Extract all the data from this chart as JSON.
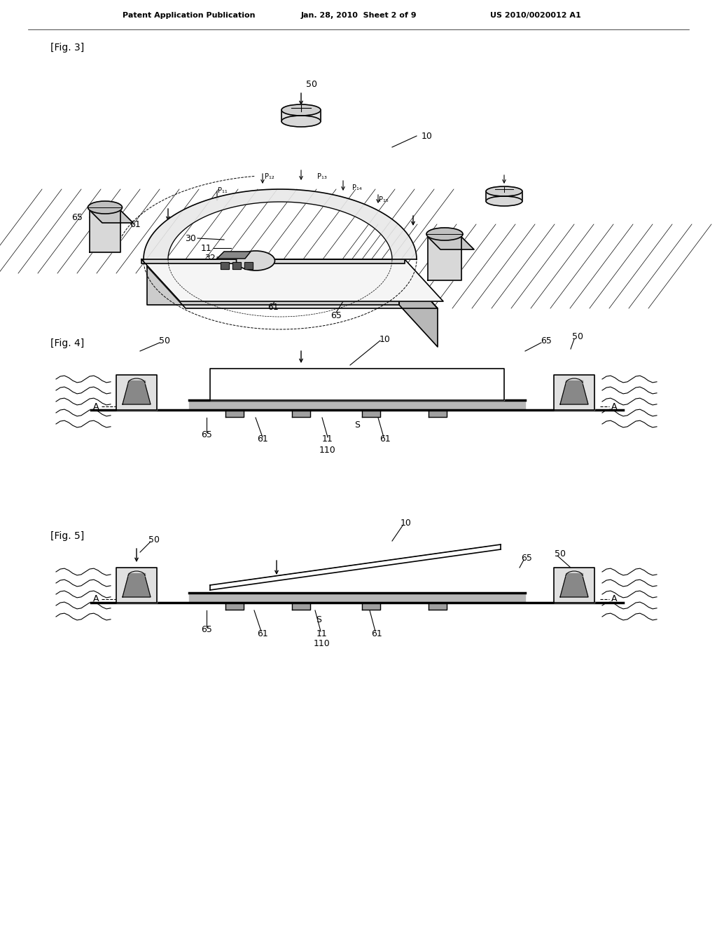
{
  "bg_color": "#ffffff",
  "header_left": "Patent Application Publication",
  "header_center": "Jan. 28, 2010  Sheet 2 of 9",
  "header_right": "US 2010/0020012 A1",
  "fig3_label": "[Fig. 3]",
  "fig4_label": "[Fig. 4]",
  "fig5_label": "[Fig. 5]",
  "lw": 1.2,
  "tlw": 2.5
}
